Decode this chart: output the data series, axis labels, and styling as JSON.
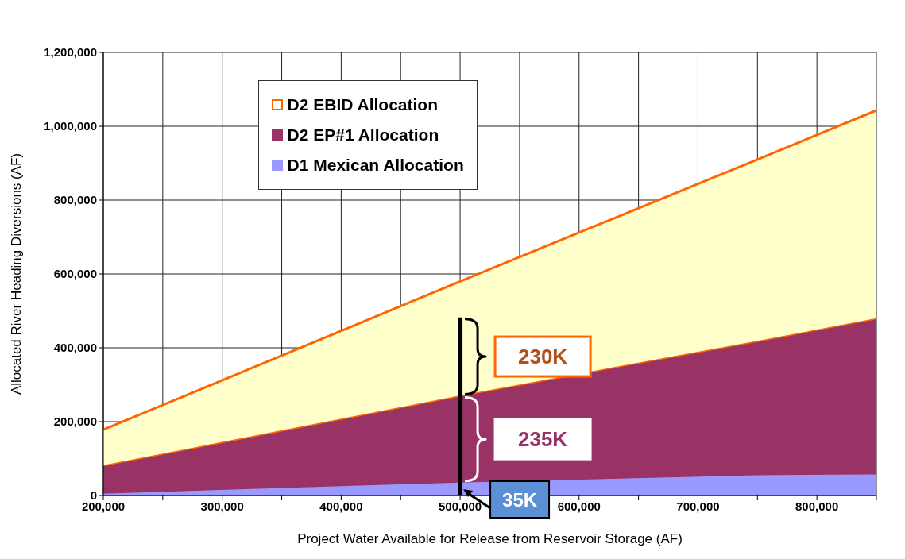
{
  "chart_data": {
    "type": "area",
    "stacked": true,
    "xlabel": "Project Water Available  for Release from Reservoir Storage (AF)",
    "ylabel": "Allocated River Heading Diversions (AF)",
    "x": [
      200000,
      500000,
      750000,
      850000
    ],
    "series": [
      {
        "name": "D1 Mexican Allocation",
        "color": "#9999ff",
        "values": [
          5000,
          35000,
          55000,
          57000
        ]
      },
      {
        "name": "D2 EP#1 Allocation",
        "color": "#993366",
        "values": [
          77000,
          236000,
          364000,
          423000
        ]
      },
      {
        "name": "D2 EBID Allocation",
        "color": "#ffffcc",
        "values": [
          96000,
          309000,
          491000,
          563000
        ]
      }
    ],
    "xlim": [
      200000,
      850000
    ],
    "xticks": [
      {
        "value": 200000,
        "label": "200,000"
      },
      {
        "value": 250000,
        "label": null
      },
      {
        "value": 300000,
        "label": "300,000"
      },
      {
        "value": 350000,
        "label": null
      },
      {
        "value": 400000,
        "label": "400,000"
      },
      {
        "value": 450000,
        "label": null
      },
      {
        "value": 500000,
        "label": "500,000"
      },
      {
        "value": 550000,
        "label": null
      },
      {
        "value": 600000,
        "label": "600,000"
      },
      {
        "value": 650000,
        "label": null
      },
      {
        "value": 700000,
        "label": "700,000"
      },
      {
        "value": 750000,
        "label": null
      },
      {
        "value": 800000,
        "label": "800,000"
      },
      {
        "value": 850000,
        "label": null
      }
    ],
    "ylim": [
      0,
      1200000
    ],
    "yticks": [
      {
        "value": 0,
        "label": "0"
      },
      {
        "value": 200000,
        "label": "200,000"
      },
      {
        "value": 400000,
        "label": "400,000"
      },
      {
        "value": 600000,
        "label": "600,000"
      },
      {
        "value": 800000,
        "label": "800,000"
      },
      {
        "value": 1000000,
        "label": "1,000,000"
      },
      {
        "value": 1200000,
        "label": "1,200,000"
      }
    ],
    "grid": true,
    "legend": "top left",
    "annotations": [
      "230K",
      "235K",
      {
        "text": "35K",
        "x": 500000,
        "y": 0
      }
    ]
  }
}
